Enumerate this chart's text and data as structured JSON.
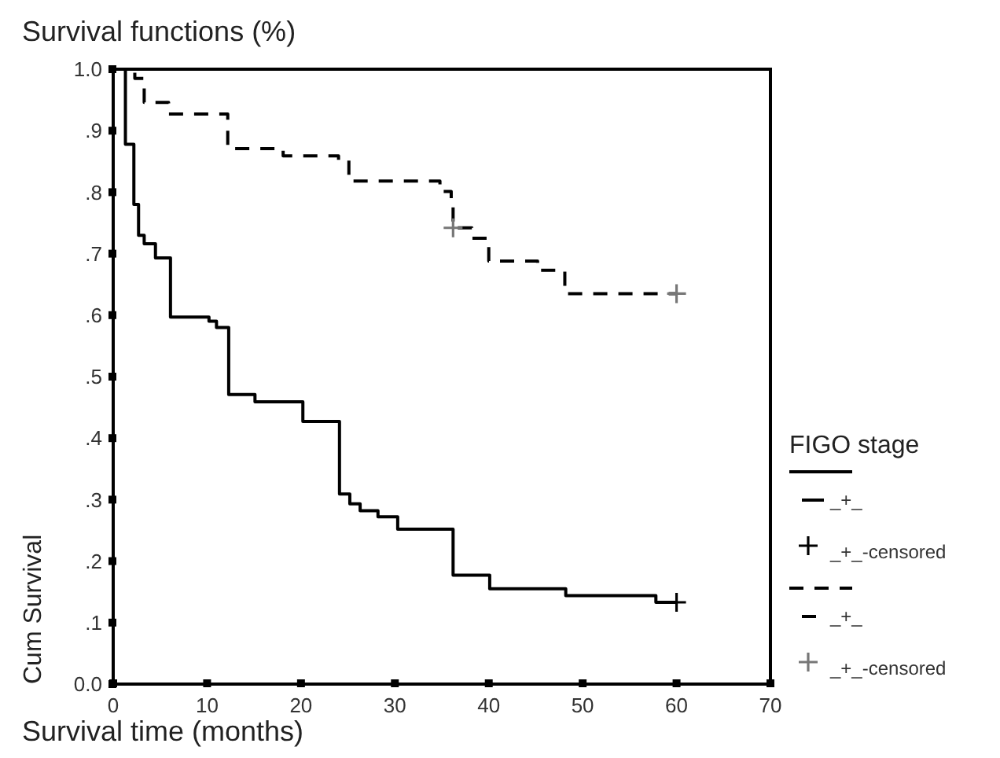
{
  "chart_data": {
    "type": "step",
    "title": "Survival functions (%)",
    "xlabel": "Survival time (months)",
    "ylabel": "Cum Survival",
    "legend_title": "FIGO stage",
    "legend": "right",
    "grid": false,
    "xlim": [
      0,
      70
    ],
    "xticks": [
      0,
      10,
      20,
      30,
      40,
      50,
      60,
      70
    ],
    "ylim": [
      0,
      1
    ],
    "yticks": [
      {
        "value": 0,
        "label": "0.0"
      },
      {
        "value": 0.1,
        "label": ".1"
      },
      {
        "value": 0.2,
        "label": ".2"
      },
      {
        "value": 0.3,
        "label": ".3"
      },
      {
        "value": 0.4,
        "label": ".4"
      },
      {
        "value": 0.5,
        "label": ".5"
      },
      {
        "value": 0.6,
        "label": ".6"
      },
      {
        "value": 0.7,
        "label": ".7"
      },
      {
        "value": 0.8,
        "label": ".8"
      },
      {
        "value": 0.9,
        "label": ".9"
      },
      {
        "value": 1,
        "label": "1.0"
      }
    ],
    "series": [
      {
        "name": "_+_",
        "type": "step",
        "color": "#000000",
        "line_style": "solid",
        "marker": "none",
        "x": [
          0,
          1.3,
          2.2,
          2.7,
          3.3,
          4.5,
          6.1,
          10.2,
          11,
          12.3,
          15.1,
          20.2,
          24.1,
          25.2,
          26.3,
          28.2,
          30.3,
          36.2,
          40.1,
          48.2,
          57.8,
          60
        ],
        "values": [
          1,
          0.878,
          0.78,
          0.73,
          0.716,
          0.693,
          0.597,
          0.59,
          0.58,
          0.471,
          0.459,
          0.427,
          0.309,
          0.293,
          0.282,
          0.272,
          0.252,
          0.177,
          0.155,
          0.144,
          0.133,
          0.133
        ]
      },
      {
        "name": "_+_-censored",
        "type": "scatter",
        "color": "#000000",
        "marker": "cross",
        "x": [
          60
        ],
        "values": [
          0.133
        ]
      },
      {
        "name": "_+_",
        "type": "step",
        "color": "#000000",
        "line_style": "dashed",
        "marker": "none",
        "x": [
          0,
          2.3,
          3.3,
          5.9,
          12.2,
          18.1,
          24,
          25.1,
          34.8,
          36,
          36.2,
          38.2,
          40,
          45.2,
          48.1,
          60
        ],
        "values": [
          1,
          0.985,
          0.946,
          0.927,
          0.871,
          0.859,
          0.852,
          0.818,
          0.801,
          0.784,
          0.742,
          0.725,
          0.688,
          0.673,
          0.635,
          0.635
        ]
      },
      {
        "name": "_+_-censored",
        "type": "scatter",
        "color": "#777777",
        "marker": "cross",
        "x": [
          36.2,
          60
        ],
        "values": [
          0.742,
          0.635
        ]
      }
    ]
  }
}
